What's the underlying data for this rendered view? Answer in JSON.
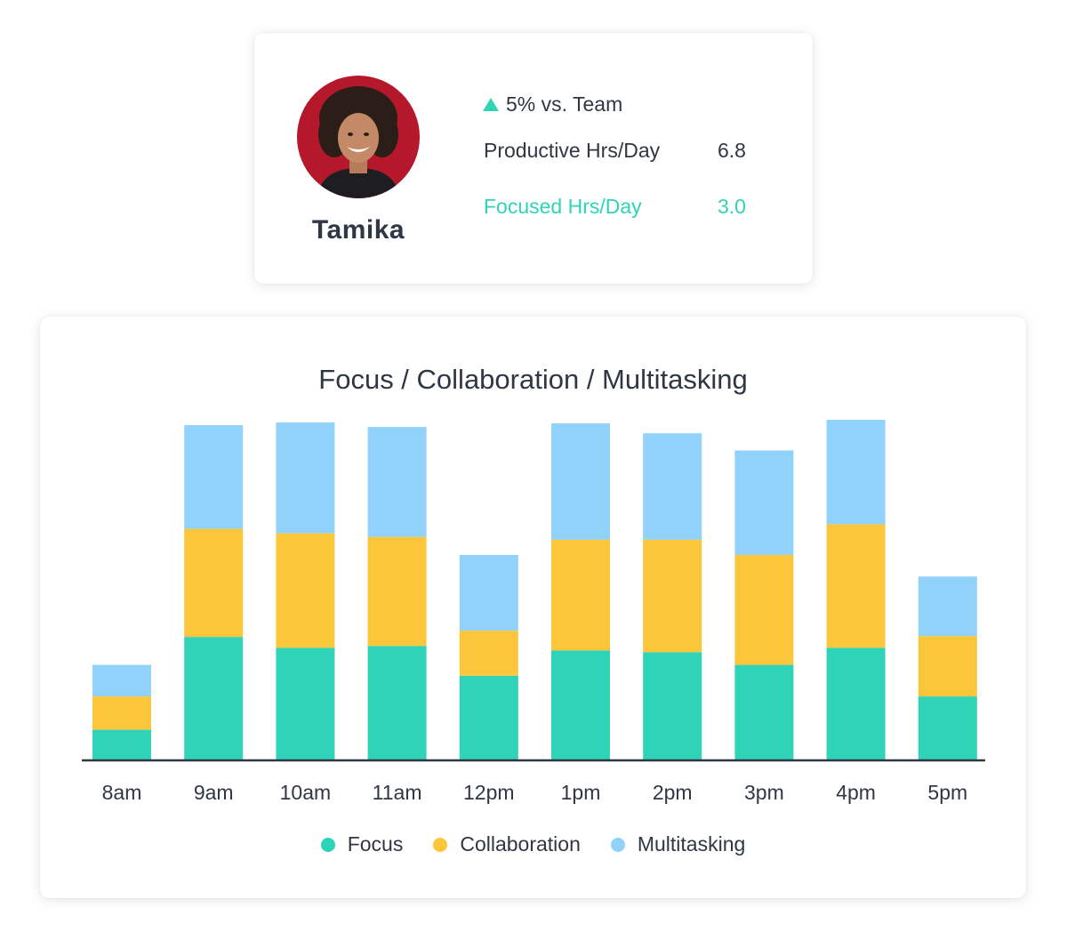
{
  "profile": {
    "name": "Tamika",
    "trend_text": "5% vs. Team",
    "metrics": [
      {
        "label": "Productive Hrs/Day",
        "value": "6.8"
      },
      {
        "label": "Focused Hrs/Day",
        "value": "3.0"
      }
    ],
    "colors": {
      "accent": "#2fd3b8",
      "avatar_background": "#b5182b"
    }
  },
  "chart_data": {
    "type": "bar",
    "stacked": true,
    "title": "Focus / Collaboration / Multitasking",
    "xlabel": "",
    "ylabel": "",
    "y_axis_visible": false,
    "grid": false,
    "legend_position": "bottom",
    "categories": [
      "8am",
      "9am",
      "10am",
      "11am",
      "12pm",
      "1pm",
      "2pm",
      "3pm",
      "4pm",
      "5pm"
    ],
    "series": [
      {
        "name": "Focus",
        "color": "#2fd3b8",
        "values": [
          34,
          137,
          125,
          127,
          94,
          122,
          120,
          106,
          125,
          71
        ]
      },
      {
        "name": "Collaboration",
        "color": "#fcc63b",
        "values": [
          37,
          120,
          127,
          121,
          50,
          123,
          125,
          122,
          137,
          67
        ]
      },
      {
        "name": "Multitasking",
        "color": "#91d2fb",
        "values": [
          35,
          115,
          123,
          122,
          84,
          129,
          118,
          116,
          116,
          66
        ]
      }
    ],
    "ylim": [
      0,
      380
    ]
  }
}
